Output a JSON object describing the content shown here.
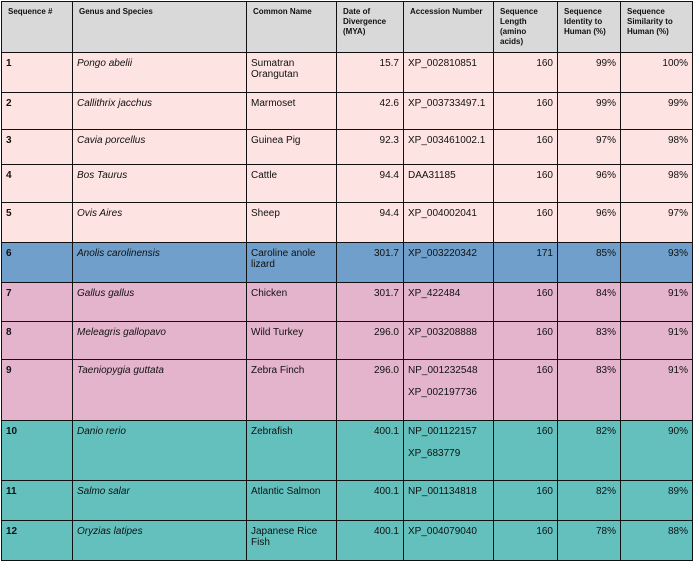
{
  "colors": {
    "header": "#d9d9d9",
    "mammal": "#fde3e2",
    "reptile": "#6f9fca",
    "bird": "#e4b4cd",
    "fish": "#63c0bd"
  },
  "headers": [
    "Sequence #",
    "Genus and Species",
    "Common Name",
    "Date of Divergence (MYA)",
    "Accession Number",
    "Sequence Length (amino acids)",
    "Sequence Identity to Human (%)",
    "Sequence Similarity to Human (%)"
  ],
  "rows": [
    {
      "seq": "1",
      "species": "Pongo abelii",
      "common": "Sumatran Orangutan",
      "mya": "15.7",
      "acc": [
        "XP_002810851"
      ],
      "len": "160",
      "ident": "99%",
      "sim": "100%",
      "group": "mammal"
    },
    {
      "seq": "2",
      "species": "Callithrix jacchus",
      "common": "Marmoset",
      "mya": "42.6",
      "acc": [
        "XP_003733497.1"
      ],
      "len": "160",
      "ident": "99%",
      "sim": "99%",
      "group": "mammal"
    },
    {
      "seq": "3",
      "species": "Cavia porcellus",
      "common": "Guinea Pig",
      "mya": "92.3",
      "acc": [
        "XP_003461002.1"
      ],
      "len": "160",
      "ident": "97%",
      "sim": "98%",
      "group": "mammal"
    },
    {
      "seq": "4",
      "species": "Bos Taurus",
      "common": "Cattle",
      "mya": "94.4",
      "acc": [
        "DAA31185"
      ],
      "len": "160",
      "ident": "96%",
      "sim": "98%",
      "group": "mammal"
    },
    {
      "seq": "5",
      "species": "Ovis Aires",
      "common": "Sheep",
      "mya": "94.4",
      "acc": [
        "XP_004002041"
      ],
      "len": "160",
      "ident": "96%",
      "sim": "97%",
      "group": "mammal"
    },
    {
      "seq": "6",
      "species": "Anolis carolinensis",
      "common": "Caroline anole lizard",
      "mya": "301.7",
      "acc": [
        "XP_003220342"
      ],
      "len": "171",
      "ident": "85%",
      "sim": "93%",
      "group": "reptile"
    },
    {
      "seq": "7",
      "species": "Gallus gallus",
      "common": "Chicken",
      "mya": "301.7",
      "acc": [
        " XP_422484"
      ],
      "len": "160",
      "ident": "84%",
      "sim": "91%",
      "group": "bird"
    },
    {
      "seq": "8",
      "species": " Meleagris gallopavo",
      "common": "Wild Turkey",
      "mya": "296.0",
      "acc": [
        "XP_003208888"
      ],
      "len": "160",
      "ident": "83%",
      "sim": "91%",
      "group": "bird"
    },
    {
      "seq": "9",
      "species": "Taeniopygia guttata",
      "common": "Zebra Finch",
      "mya": "296.0",
      "acc": [
        "NP_001232548",
        "XP_002197736"
      ],
      "len": "160",
      "ident": "83%",
      "sim": "91%",
      "group": "bird"
    },
    {
      "seq": "10",
      "species": "Danio rerio",
      "common": "Zebrafish",
      "mya": "400.1",
      "acc": [
        "NP_001122157",
        " XP_683779"
      ],
      "len": "160",
      "ident": "82%",
      "sim": "90%",
      "group": "fish"
    },
    {
      "seq": "11",
      "species": "Salmo salar",
      "common": "Atlantic Salmon",
      "mya": "400.1",
      "acc": [
        "NP_001134818"
      ],
      "len": "160",
      "ident": "82%",
      "sim": "89%",
      "group": "fish"
    },
    {
      "seq": "12",
      "species": "Oryzias latipes",
      "common": "Japanese Rice Fish",
      "mya": "400.1",
      "acc": [
        "XP_004079040"
      ],
      "len": "160",
      "ident": "78%",
      "sim": "88%",
      "group": "fish"
    }
  ]
}
